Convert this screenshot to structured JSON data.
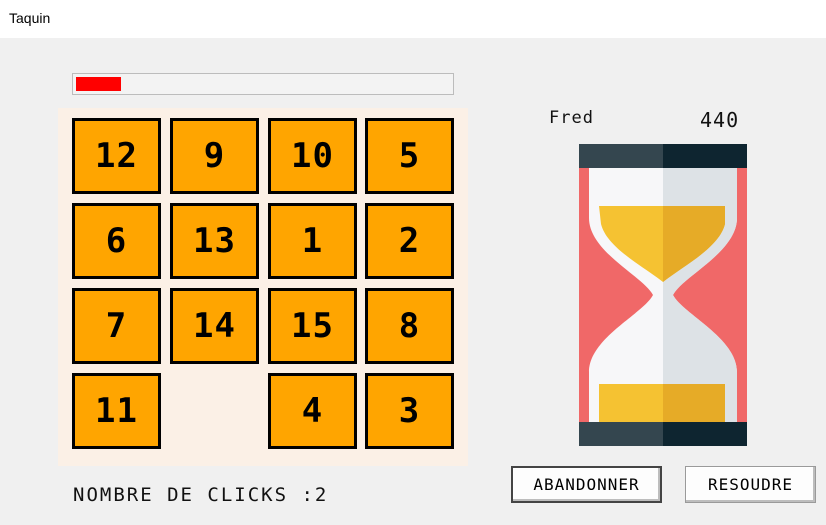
{
  "window": {
    "title": "Taquin"
  },
  "progress": {
    "fraction": 0.12,
    "color": "#ff0000"
  },
  "board": {
    "rows": [
      [
        "12",
        "9",
        "10",
        "5"
      ],
      [
        "6",
        "13",
        "1",
        "2"
      ],
      [
        "7",
        "14",
        "15",
        "8"
      ],
      [
        "11",
        "",
        "4",
        "3"
      ]
    ],
    "tile_color": "#ffa500"
  },
  "status": {
    "clicks_label": "NOMBRE DE CLICKS :2"
  },
  "player": {
    "name": "Fred",
    "score": "440"
  },
  "timer": {
    "icon": "hourglass-icon"
  },
  "buttons": {
    "abandon": "ABANDONNER",
    "resolve": "RESOUDRE"
  }
}
